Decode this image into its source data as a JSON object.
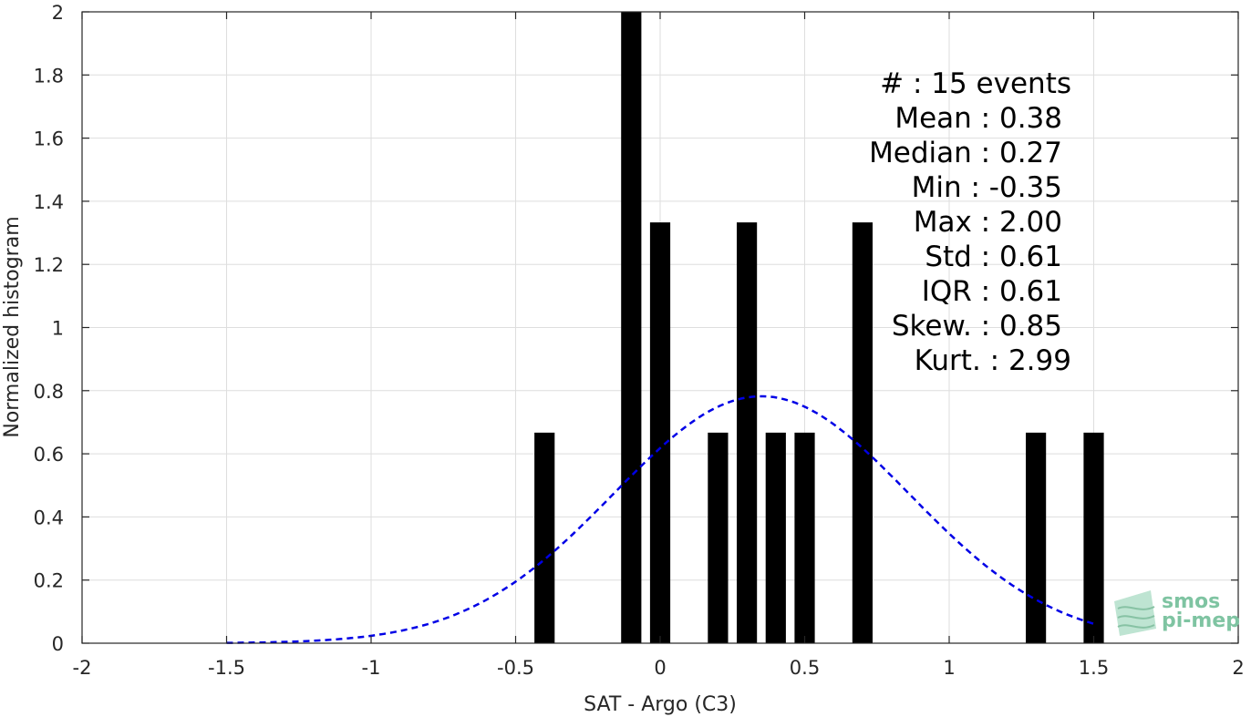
{
  "chart_data": {
    "type": "bar",
    "xlabel": "SAT - Argo (C3)",
    "ylabel": "Normalized histogram",
    "xlim": [
      -2,
      2
    ],
    "ylim": [
      0,
      2
    ],
    "xticks": [
      -2,
      -1.5,
      -1,
      -0.5,
      0,
      0.5,
      1,
      1.5,
      2
    ],
    "xtick_labels": [
      "-2",
      "-1.5",
      "-1",
      "-0.5",
      "0",
      "0.5",
      "1",
      "1.5",
      "2"
    ],
    "yticks": [
      0,
      0.2,
      0.4,
      0.6,
      0.8,
      1,
      1.2,
      1.4,
      1.6,
      1.8,
      2
    ],
    "ytick_labels": [
      "0",
      "0.2",
      "0.4",
      "0.6",
      "0.8",
      "1",
      "1.2",
      "1.4",
      "1.6",
      "1.8",
      "2"
    ],
    "grid": true,
    "bar_width": 0.07,
    "bar_color": "#000000",
    "bars": [
      {
        "x": -0.4,
        "value": 0.667
      },
      {
        "x": -0.1,
        "value": 2.0
      },
      {
        "x": 0.0,
        "value": 1.333
      },
      {
        "x": 0.2,
        "value": 0.667
      },
      {
        "x": 0.3,
        "value": 1.333
      },
      {
        "x": 0.4,
        "value": 0.667
      },
      {
        "x": 0.5,
        "value": 0.667
      },
      {
        "x": 0.7,
        "value": 1.333
      },
      {
        "x": 1.3,
        "value": 0.667
      },
      {
        "x": 1.5,
        "value": 0.667
      }
    ],
    "fit_curve": {
      "type": "normal-pdf",
      "mean": 0.35,
      "std": 0.51,
      "x_range": [
        -1.5,
        1.5
      ],
      "color": "#0000e6",
      "style": "dashed"
    },
    "stats_lines": [
      "#  : 15 events",
      "Mean : 0.38",
      "Median : 0.27",
      "Min : -0.35",
      "Max : 2.00",
      "Std : 0.61",
      "IQR : 0.61",
      "Skew. : 0.85",
      "Kurt. : 2.99"
    ]
  },
  "logo": {
    "line1": "smos",
    "line2": "pi-mep",
    "color": "#7fc4a2"
  }
}
